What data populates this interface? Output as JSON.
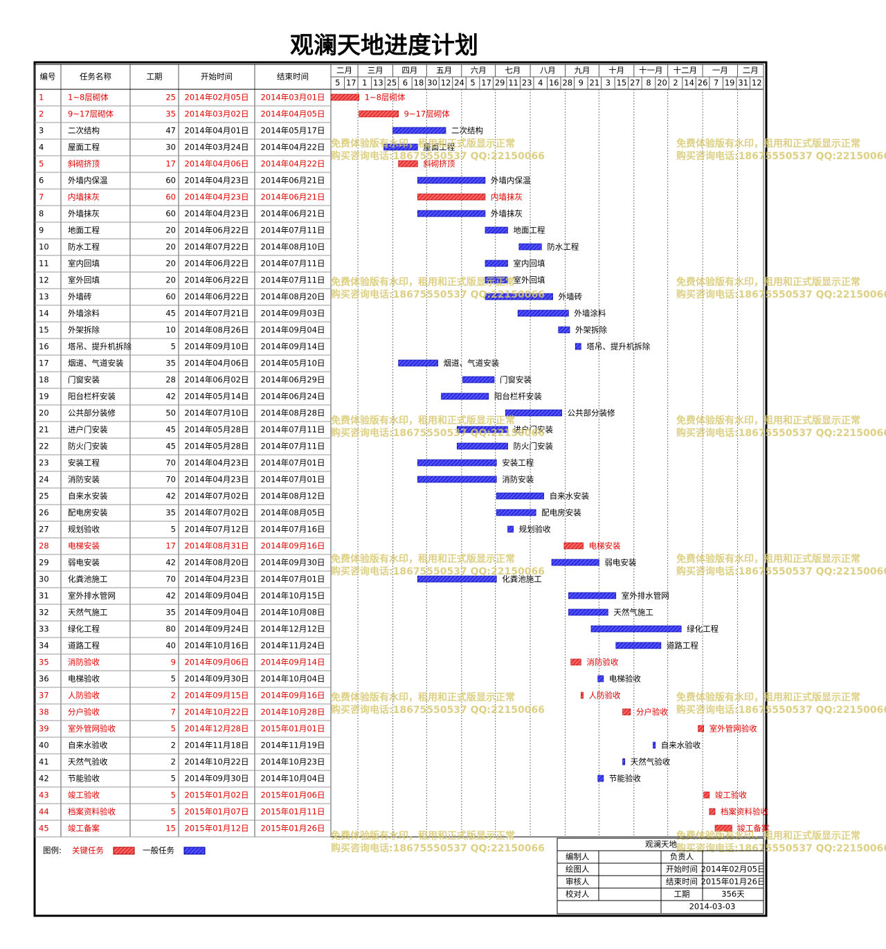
{
  "header": {
    "title": "观澜天地进度计划"
  },
  "table": {
    "columns": [
      "编号",
      "任务名称",
      "工期",
      "开始时间",
      "结束时间"
    ],
    "rows": [
      {
        "id": 1,
        "name": "1~8层砌体",
        "duration": 25,
        "start": "2014年02月05日",
        "end": "2014年03月01日",
        "critical": true
      },
      {
        "id": 2,
        "name": "9~17层砌体",
        "duration": 35,
        "start": "2014年03月02日",
        "end": "2014年04月05日",
        "critical": true
      },
      {
        "id": 3,
        "name": "二次结构",
        "duration": 47,
        "start": "2014年04月01日",
        "end": "2014年05月17日",
        "critical": false
      },
      {
        "id": 4,
        "name": "屋面工程",
        "duration": 30,
        "start": "2014年03月24日",
        "end": "2014年04月22日",
        "critical": false
      },
      {
        "id": 5,
        "name": "斜砌挤顶",
        "duration": 17,
        "start": "2014年04月06日",
        "end": "2014年04月22日",
        "critical": true
      },
      {
        "id": 6,
        "name": "外墙内保温",
        "duration": 60,
        "start": "2014年04月23日",
        "end": "2014年06月21日",
        "critical": false
      },
      {
        "id": 7,
        "name": "内墙抹灰",
        "duration": 60,
        "start": "2014年04月23日",
        "end": "2014年06月21日",
        "critical": true
      },
      {
        "id": 8,
        "name": "外墙抹灰",
        "duration": 60,
        "start": "2014年04月23日",
        "end": "2014年06月21日",
        "critical": false
      },
      {
        "id": 9,
        "name": "地面工程",
        "duration": 20,
        "start": "2014年06月22日",
        "end": "2014年07月11日",
        "critical": false
      },
      {
        "id": 10,
        "name": "防水工程",
        "duration": 20,
        "start": "2014年07月22日",
        "end": "2014年08月10日",
        "critical": false
      },
      {
        "id": 11,
        "name": "室内回填",
        "duration": 20,
        "start": "2014年06月22日",
        "end": "2014年07月11日",
        "critical": false
      },
      {
        "id": 12,
        "name": "室外回填",
        "duration": 20,
        "start": "2014年06月22日",
        "end": "2014年07月11日",
        "critical": false
      },
      {
        "id": 13,
        "name": "外墙砖",
        "duration": 60,
        "start": "2014年06月22日",
        "end": "2014年08月20日",
        "critical": false
      },
      {
        "id": 14,
        "name": "外墙涂料",
        "duration": 45,
        "start": "2014年07月21日",
        "end": "2014年09月03日",
        "critical": false
      },
      {
        "id": 15,
        "name": "外架拆除",
        "duration": 10,
        "start": "2014年08月26日",
        "end": "2014年09月04日",
        "critical": false
      },
      {
        "id": 16,
        "name": "塔吊、提升机拆除",
        "duration": 5,
        "start": "2014年09月10日",
        "end": "2014年09月14日",
        "critical": false
      },
      {
        "id": 17,
        "name": "烟道、气道安装",
        "duration": 35,
        "start": "2014年04月06日",
        "end": "2014年05月10日",
        "critical": false
      },
      {
        "id": 18,
        "name": "门窗安装",
        "duration": 28,
        "start": "2014年06月02日",
        "end": "2014年06月29日",
        "critical": false
      },
      {
        "id": 19,
        "name": "阳台栏杆安装",
        "duration": 42,
        "start": "2014年05月14日",
        "end": "2014年06月24日",
        "critical": false
      },
      {
        "id": 20,
        "name": "公共部分装修",
        "duration": 50,
        "start": "2014年07月10日",
        "end": "2014年08月28日",
        "critical": false
      },
      {
        "id": 21,
        "name": "进户门安装",
        "duration": 45,
        "start": "2014年05月28日",
        "end": "2014年07月11日",
        "critical": false
      },
      {
        "id": 22,
        "name": "防火门安装",
        "duration": 45,
        "start": "2014年05月28日",
        "end": "2014年07月11日",
        "critical": false
      },
      {
        "id": 23,
        "name": "安装工程",
        "duration": 70,
        "start": "2014年04月23日",
        "end": "2014年07月01日",
        "critical": false
      },
      {
        "id": 24,
        "name": "消防安装",
        "duration": 70,
        "start": "2014年04月23日",
        "end": "2014年07月01日",
        "critical": false
      },
      {
        "id": 25,
        "name": "自来水安装",
        "duration": 42,
        "start": "2014年07月02日",
        "end": "2014年08月12日",
        "critical": false
      },
      {
        "id": 26,
        "name": "配电房安装",
        "duration": 35,
        "start": "2014年07月02日",
        "end": "2014年08月05日",
        "critical": false
      },
      {
        "id": 27,
        "name": "规划验收",
        "duration": 5,
        "start": "2014年07月12日",
        "end": "2014年07月16日",
        "critical": false
      },
      {
        "id": 28,
        "name": "电梯安装",
        "duration": 17,
        "start": "2014年08月31日",
        "end": "2014年09月16日",
        "critical": true
      },
      {
        "id": 29,
        "name": "弱电安装",
        "duration": 42,
        "start": "2014年08月20日",
        "end": "2014年09月30日",
        "critical": false
      },
      {
        "id": 30,
        "name": "化粪池施工",
        "duration": 70,
        "start": "2014年04月23日",
        "end": "2014年07月01日",
        "critical": false
      },
      {
        "id": 31,
        "name": "室外排水管网",
        "duration": 42,
        "start": "2014年09月04日",
        "end": "2014年10月15日",
        "critical": false
      },
      {
        "id": 32,
        "name": "天然气施工",
        "duration": 35,
        "start": "2014年09月04日",
        "end": "2014年10月08日",
        "critical": false
      },
      {
        "id": 33,
        "name": "绿化工程",
        "duration": 80,
        "start": "2014年09月24日",
        "end": "2014年12月12日",
        "critical": false
      },
      {
        "id": 34,
        "name": "道路工程",
        "duration": 40,
        "start": "2014年10月16日",
        "end": "2014年11月24日",
        "critical": false
      },
      {
        "id": 35,
        "name": "消防验收",
        "duration": 9,
        "start": "2014年09月06日",
        "end": "2014年09月14日",
        "critical": true
      },
      {
        "id": 36,
        "name": "电梯验收",
        "duration": 5,
        "start": "2014年09月30日",
        "end": "2014年10月04日",
        "critical": false
      },
      {
        "id": 37,
        "name": "人防验收",
        "duration": 2,
        "start": "2014年09月15日",
        "end": "2014年09月16日",
        "critical": true
      },
      {
        "id": 38,
        "name": "分户验收",
        "duration": 7,
        "start": "2014年10月22日",
        "end": "2014年10月28日",
        "critical": true
      },
      {
        "id": 39,
        "name": "室外管网验收",
        "duration": 5,
        "start": "2014年12月28日",
        "end": "2015年01月01日",
        "critical": true
      },
      {
        "id": 40,
        "name": "自来水验收",
        "duration": 2,
        "start": "2014年11月18日",
        "end": "2014年11月19日",
        "critical": false
      },
      {
        "id": 41,
        "name": "天然气验收",
        "duration": 2,
        "start": "2014年10月22日",
        "end": "2014年10月23日",
        "critical": false
      },
      {
        "id": 42,
        "name": "节能验收",
        "duration": 5,
        "start": "2014年09月30日",
        "end": "2014年10月04日",
        "critical": false
      },
      {
        "id": 43,
        "name": "竣工验收",
        "duration": 5,
        "start": "2015年01月02日",
        "end": "2015年01月06日",
        "critical": true
      },
      {
        "id": 44,
        "name": "档案资料验收",
        "duration": 5,
        "start": "2015年01月07日",
        "end": "2015年01月11日",
        "critical": true
      },
      {
        "id": 45,
        "name": "竣工备案",
        "duration": 15,
        "start": "2015年01月12日",
        "end": "2015年01月26日",
        "critical": true
      }
    ]
  },
  "timeline": {
    "months": [
      "二月",
      "三月",
      "四月",
      "五月",
      "六月",
      "七月",
      "八月",
      "九月",
      "十月",
      "十一月",
      "十二月",
      "一月",
      "二月"
    ],
    "days": [
      5,
      17,
      1,
      13,
      25,
      6,
      18,
      30,
      12,
      24,
      5,
      17,
      29,
      11,
      23,
      4,
      16,
      28,
      9,
      21,
      3,
      15,
      27,
      8,
      20,
      2,
      14,
      26,
      7,
      19,
      31,
      12
    ]
  },
  "watermark": [
    "免费体验版有水印，租用和正式版显示正常",
    "购买咨询电话:18675550537 QQ:22150066"
  ],
  "legend": {
    "label": "图例:",
    "critical": "关键任务",
    "normal": "一般任务"
  },
  "info": {
    "title": "观澜天地",
    "compiler": "编制人",
    "owner": "负责人",
    "drawer": "绘图人",
    "reviewer": "审核人",
    "checker": "校对人",
    "start_label": "开始时间",
    "start": "2014年02月05日",
    "end_label": "结束时间",
    "end": "2015年01月26日",
    "duration_label": "工期",
    "duration": "356天",
    "date": "2014-03-03"
  }
}
